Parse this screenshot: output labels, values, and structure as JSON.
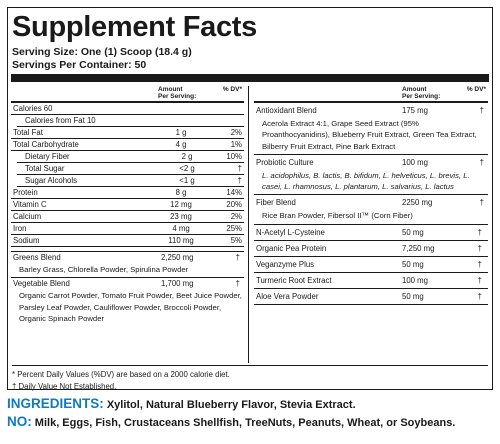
{
  "title": "Supplement Facts",
  "serving_size": "Serving Size: One (1) Scoop (18.4 g)",
  "servings_per_container": "Servings Per Container: 50",
  "header": {
    "amount": "Amount",
    "per_serving": "Per Serving:",
    "dv": "% DV*"
  },
  "left_rows": [
    {
      "name": "Calories  60",
      "amount": "",
      "dv": "",
      "indent": false
    },
    {
      "name": "Calories from Fat  10",
      "amount": "",
      "dv": "",
      "indent": true
    },
    {
      "name": "Total Fat",
      "amount": "1 g",
      "dv": "2%",
      "indent": false
    },
    {
      "name": "Total Carbohydrate",
      "amount": "4 g",
      "dv": "1%",
      "indent": false
    },
    {
      "name": "Dietary Fiber",
      "amount": "2 g",
      "dv": "10%",
      "indent": true
    },
    {
      "name": "Total Sugar",
      "amount": "<2 g",
      "dv": "†",
      "indent": true
    },
    {
      "name": "Sugar Alcohols",
      "amount": "<1 g",
      "dv": "†",
      "indent": true
    },
    {
      "name": "Protein",
      "amount": "8 g",
      "dv": "14%",
      "indent": false
    },
    {
      "name": "Vitamin C",
      "amount": "12 mg",
      "dv": "20%",
      "indent": false
    },
    {
      "name": "Calcium",
      "amount": "23 mg",
      "dv": "2%",
      "indent": false
    },
    {
      "name": "Iron",
      "amount": "4 mg",
      "dv": "25%",
      "indent": false
    },
    {
      "name": "Sodium",
      "amount": "110 mg",
      "dv": "5%",
      "indent": false
    }
  ],
  "greens": {
    "name": "Greens Blend",
    "amount": "2,250 mg",
    "dv": "†",
    "desc": "Barley Grass, Chlorella Powder, Spirulina Powder"
  },
  "vegetable": {
    "name": "Vegetable Blend",
    "amount": "1,700 mg",
    "dv": "†",
    "desc": "Organic Carrot Powder, Tomato Fruit Powder, Beet Juice Powder, Parsley Leaf Powder, Cauliflower Powder, Broccoli Powder, Organic Spinach Powder"
  },
  "antioxidant": {
    "name": "Antioxidant Blend",
    "amount": "175 mg",
    "dv": "†",
    "desc": "Acerola Extract 4:1, Grape Seed Extract (95% Proanthocyanidins), Blueberry Fruit Extract, Green Tea Extract, Bilberry Fruit Extract, Pine Bark Extract"
  },
  "probiotic": {
    "name": "Probiotic Culture",
    "amount": "100 mg",
    "dv": "†",
    "desc": "L. acidophilus, B. lactis, B. bifidum, L. helveticus, L. brevis, L. casei, L. rhamnosus, L. plantarum, L. salvarius, L. lactus"
  },
  "fiber": {
    "name": "Fiber Blend",
    "amount": "2250 mg",
    "dv": "†",
    "desc": "Rice Bran Powder, Fibersol II™ (Corn Fiber)"
  },
  "right_rows": [
    {
      "name": "N-Acetyl L-Cysteine",
      "amount": "50 mg",
      "dv": "†"
    },
    {
      "name": "Organic Pea Protein",
      "amount": "7,250 mg",
      "dv": "†"
    },
    {
      "name": "Veganzyme Plus",
      "amount": "50 mg",
      "dv": "†"
    },
    {
      "name": "Turmeric Root Extract",
      "amount": "100 mg",
      "dv": "†"
    },
    {
      "name": "Aloe Vera Powder",
      "amount": "50 mg",
      "dv": "†"
    }
  ],
  "footnote1": "* Percent Daily Values (%DV) are based on a 2000 calorie diet.",
  "footnote2": "† Daily Value Not Established.",
  "ingredients_label": "INGREDIENTS:",
  "ingredients_text": " Xylitol, Natural Blueberry Flavor, Stevia Extract.",
  "no_label": "NO:",
  "no_text": " Milk, Eggs, Fish, Crustaceans Shellfish, TreeNuts, Peanuts, Wheat, or Soybeans.",
  "accent_color": "#0f7bbf"
}
